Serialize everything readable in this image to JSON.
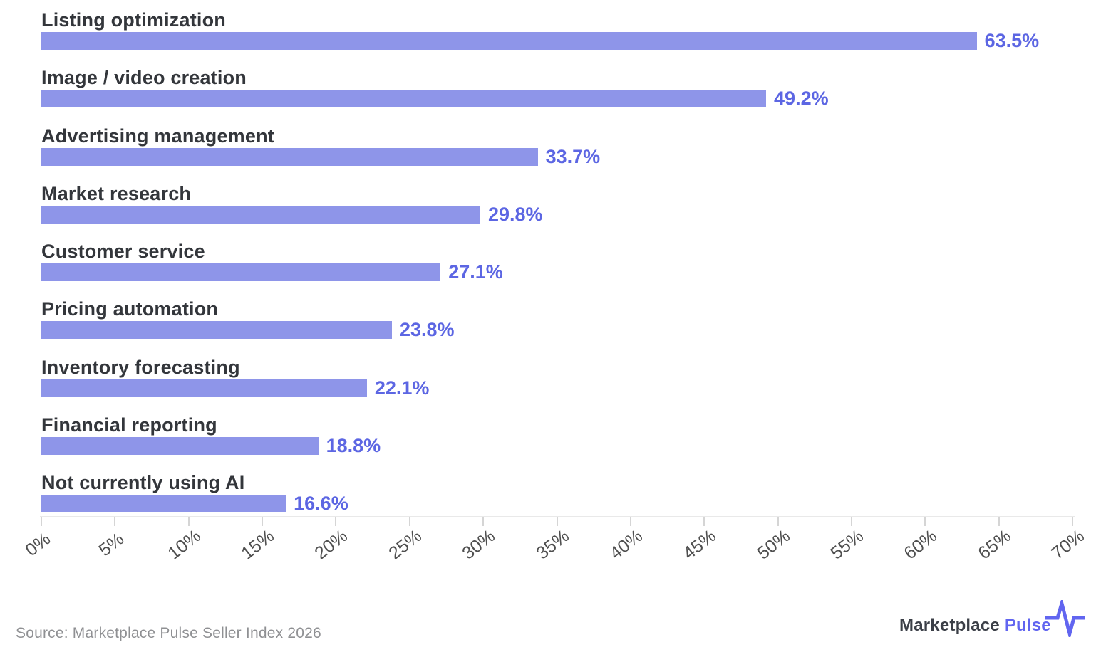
{
  "chart_data": {
    "type": "bar",
    "orientation": "horizontal",
    "categories": [
      "Listing optimization",
      "Image / video creation",
      "Advertising management",
      "Market research",
      "Customer service",
      "Pricing automation",
      "Inventory forecasting",
      "Financial reporting",
      "Not currently using AI"
    ],
    "values": [
      63.5,
      49.2,
      33.7,
      29.8,
      27.1,
      23.8,
      22.1,
      18.8,
      16.6
    ],
    "value_labels": [
      "63.5%",
      "49.2%",
      "33.7%",
      "29.8%",
      "27.1%",
      "23.8%",
      "22.1%",
      "18.8%",
      "16.6%"
    ],
    "title": "",
    "xlabel": "",
    "ylabel": "",
    "xlim": [
      0,
      70
    ],
    "x_ticks": [
      "0%",
      "5%",
      "10%",
      "15%",
      "20%",
      "25%",
      "30%",
      "35%",
      "40%",
      "45%",
      "50%",
      "55%",
      "60%",
      "65%",
      "70%"
    ],
    "grid": false,
    "legend": null,
    "value_label_position": "right-of-bar"
  },
  "colors": {
    "bar": "#8e95e9",
    "value_text": "#5c66e3",
    "category_text": "#33363b",
    "axis_text": "#4f4f4f",
    "tick": "#d5d5d5",
    "axis_line": "#e9e9e9",
    "source_text": "#8f9093",
    "logo_dark": "#3b3f47",
    "accent": "#6165f0"
  },
  "footer": {
    "source": "Source: Marketplace Pulse Seller Index 2026",
    "logo": {
      "text_dark": "Marketplace",
      "text_accent": "Pulse",
      "icon": "pulse-line-icon"
    }
  }
}
